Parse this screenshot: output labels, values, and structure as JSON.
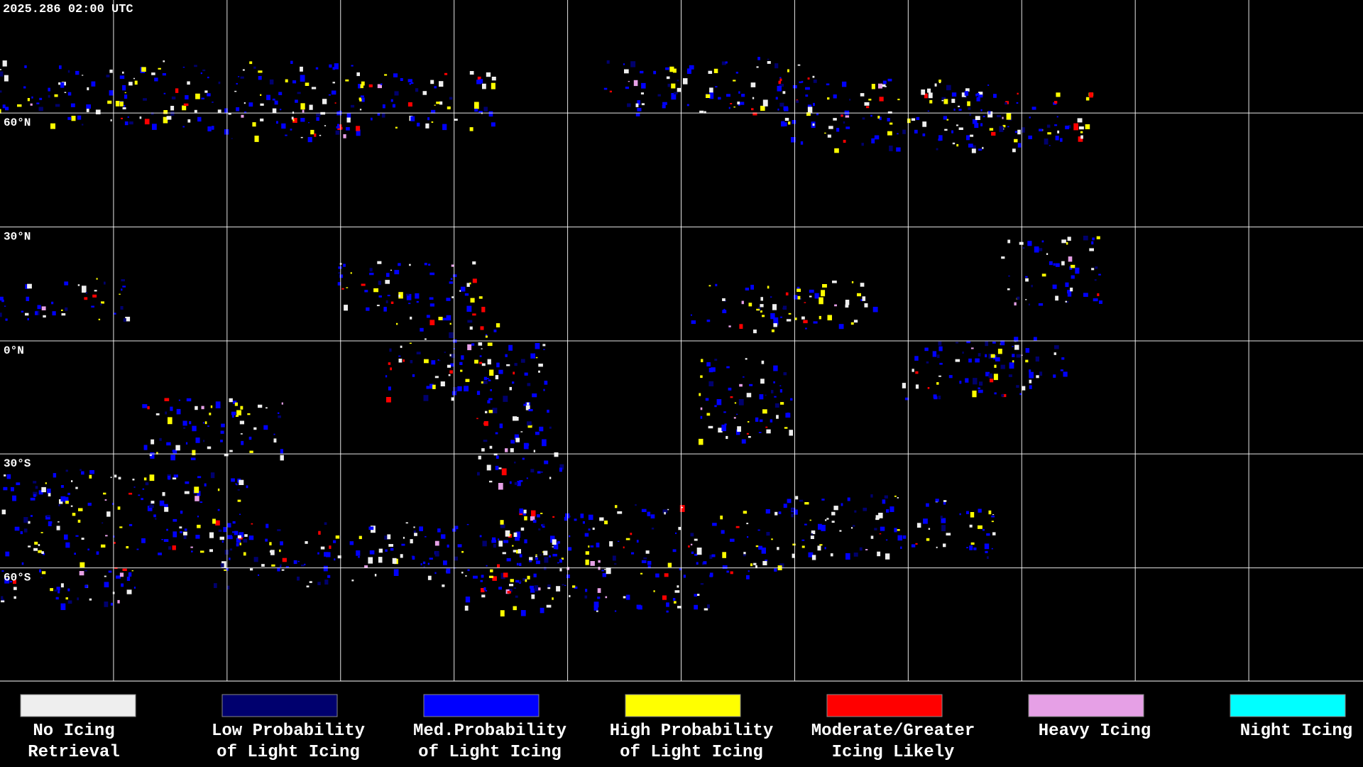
{
  "header": {
    "timestamp": "2025.286 02:00 UTC"
  },
  "latitude_labels": [
    "60°N",
    "30°N",
    "0°N",
    "30°S",
    "60°S"
  ],
  "legend": [
    {
      "lines": [
        "No Icing",
        "Retrieval"
      ],
      "color": "#eeeeee"
    },
    {
      "lines": [
        "Low Probability",
        "of Light Icing"
      ],
      "color": "#00006e"
    },
    {
      "lines": [
        "Med.Probability",
        "of Light Icing"
      ],
      "color": "#0000ff"
    },
    {
      "lines": [
        "High Probability",
        "of Light Icing"
      ],
      "color": "#ffff00"
    },
    {
      "lines": [
        "Moderate/Greater",
        "Icing Likely"
      ],
      "color": "#ff0000"
    },
    {
      "lines": [
        "Heavy Icing"
      ],
      "color": "#e6a0e6"
    },
    {
      "lines": [
        "Night Icing"
      ],
      "color": "#00ffff"
    }
  ]
}
